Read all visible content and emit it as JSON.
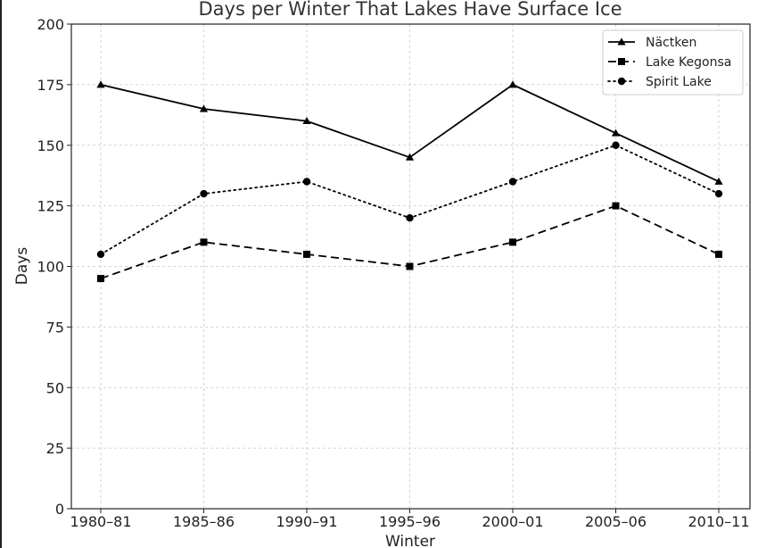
{
  "chart_data": {
    "type": "line",
    "title": "Days per Winter That Lakes Have Surface Ice",
    "xlabel": "Winter",
    "ylabel": "Days",
    "categories": [
      "1980–81",
      "1985–86",
      "1990–91",
      "1995–96",
      "2000–01",
      "2005–06",
      "2010–11"
    ],
    "ylim": [
      0,
      200
    ],
    "yticks": [
      0,
      25,
      50,
      75,
      100,
      125,
      150,
      175,
      200
    ],
    "grid": true,
    "legend_position": "top-right",
    "series": [
      {
        "name": "Näctken",
        "values": [
          175,
          165,
          160,
          145,
          175,
          155,
          135
        ],
        "line_style": "solid",
        "marker": "triangle",
        "color": "#000000"
      },
      {
        "name": "Lake Kegonsa",
        "values": [
          95,
          110,
          105,
          100,
          110,
          125,
          105
        ],
        "line_style": "dashed",
        "marker": "square",
        "color": "#000000"
      },
      {
        "name": "Spirit Lake",
        "values": [
          105,
          130,
          135,
          120,
          135,
          150,
          130
        ],
        "line_style": "dotted",
        "marker": "circle",
        "color": "#000000"
      }
    ]
  }
}
